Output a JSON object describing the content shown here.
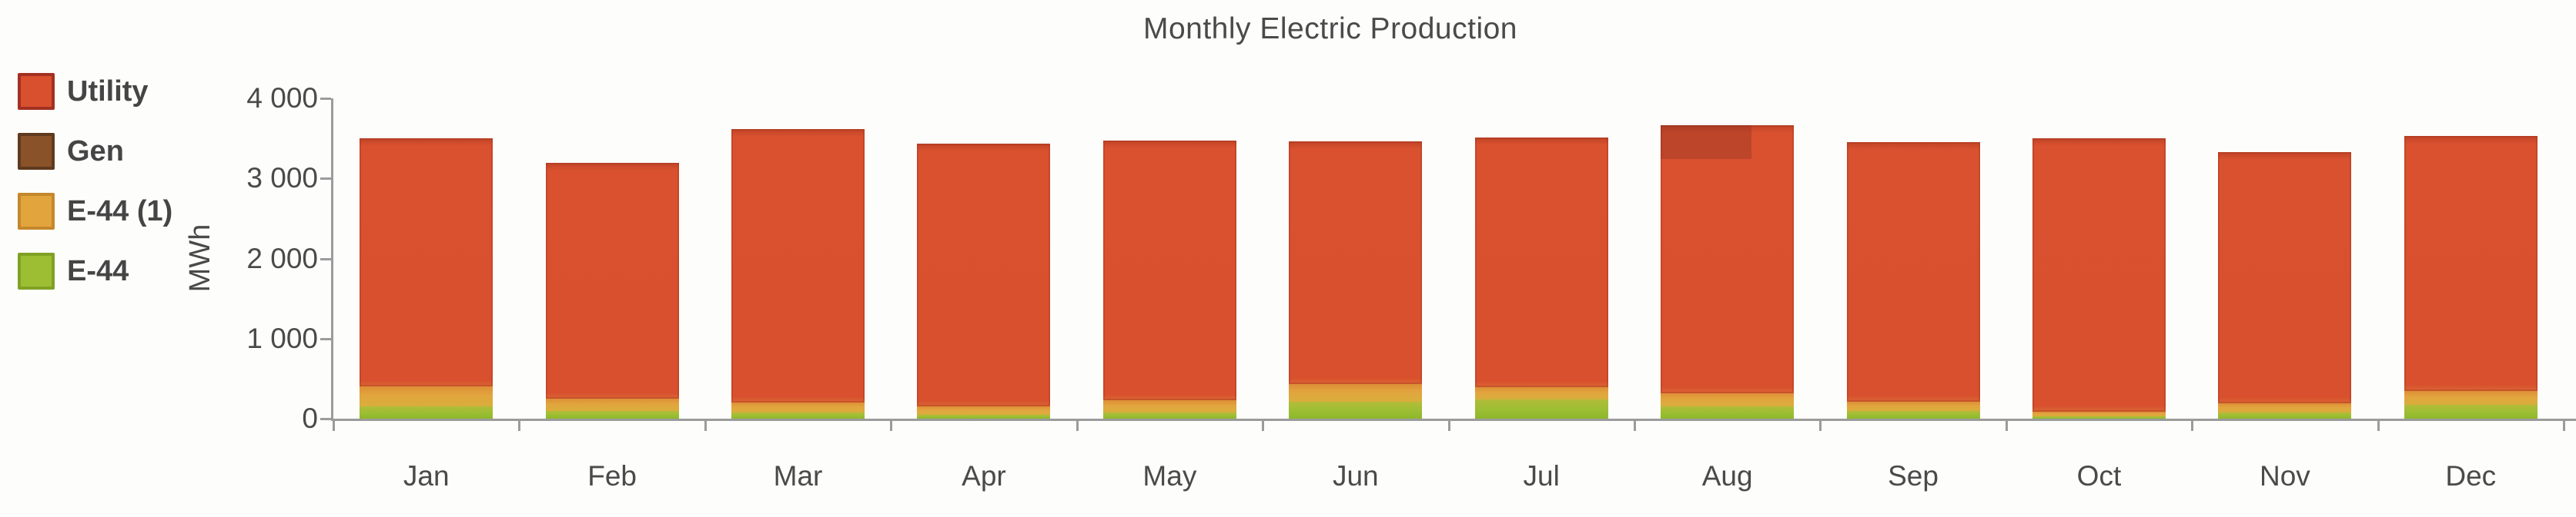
{
  "title": "Monthly Electric Production",
  "y_axis": {
    "label": "MWh",
    "ticks": [
      {
        "value": 4000,
        "label": "4 000"
      },
      {
        "value": 3000,
        "label": "3 000"
      },
      {
        "value": 2000,
        "label": "2 000"
      },
      {
        "value": 1000,
        "label": "1 000"
      },
      {
        "value": 0,
        "label": "0"
      }
    ]
  },
  "theme": {
    "axis_color": "#9b9b9b",
    "text_color": "#4a4a4a",
    "background": "#fdfdfc"
  },
  "chart_data": {
    "type": "bar",
    "stacked": true,
    "title": "Monthly Electric Production",
    "xlabel": "",
    "ylabel": "MWh",
    "ylim": [
      0,
      4000
    ],
    "y_ticks": [
      0,
      1000,
      2000,
      3000,
      4000
    ],
    "grid": false,
    "legend_position": "left",
    "categories": [
      "Jan",
      "Feb",
      "Mar",
      "Apr",
      "May",
      "Jun",
      "Jul",
      "Aug",
      "Sep",
      "Oct",
      "Nov",
      "Dec"
    ],
    "series": [
      {
        "name": "Utility",
        "color": "#d8502e",
        "border_color": "#a23122",
        "values": [
          3100,
          2940,
          3420,
          3280,
          3240,
          3030,
          3120,
          3340,
          3240,
          3410,
          3140,
          3180
        ]
      },
      {
        "name": "Gen",
        "color": "#8a5228",
        "border_color": "#5f3a1e",
        "values": [
          0,
          0,
          0,
          0,
          0,
          0,
          0,
          0,
          0,
          0,
          0,
          0
        ]
      },
      {
        "name": "E-44 (1)",
        "color": "#e2a53e",
        "border_color": "#c5872c",
        "values": [
          250,
          150,
          120,
          100,
          150,
          220,
          150,
          170,
          110,
          60,
          110,
          180
        ]
      },
      {
        "name": "E-44",
        "color": "#9dbe33",
        "border_color": "#7fa224",
        "values": [
          150,
          100,
          80,
          50,
          80,
          210,
          240,
          150,
          100,
          30,
          80,
          170
        ]
      }
    ],
    "stack_order_bottom_to_top": [
      "E-44",
      "E-44 (1)",
      "Gen",
      "Utility"
    ],
    "totals": [
      3500,
      3190,
      3620,
      3430,
      3470,
      3460,
      3510,
      3660,
      3450,
      3500,
      3330,
      3530
    ],
    "annotations": [
      {
        "category": "Aug",
        "type": "darker-patch",
        "color": "rgba(120,40,30,0.28)",
        "depth_mwh": 420,
        "width_frac": 0.68,
        "align": "left"
      }
    ]
  }
}
